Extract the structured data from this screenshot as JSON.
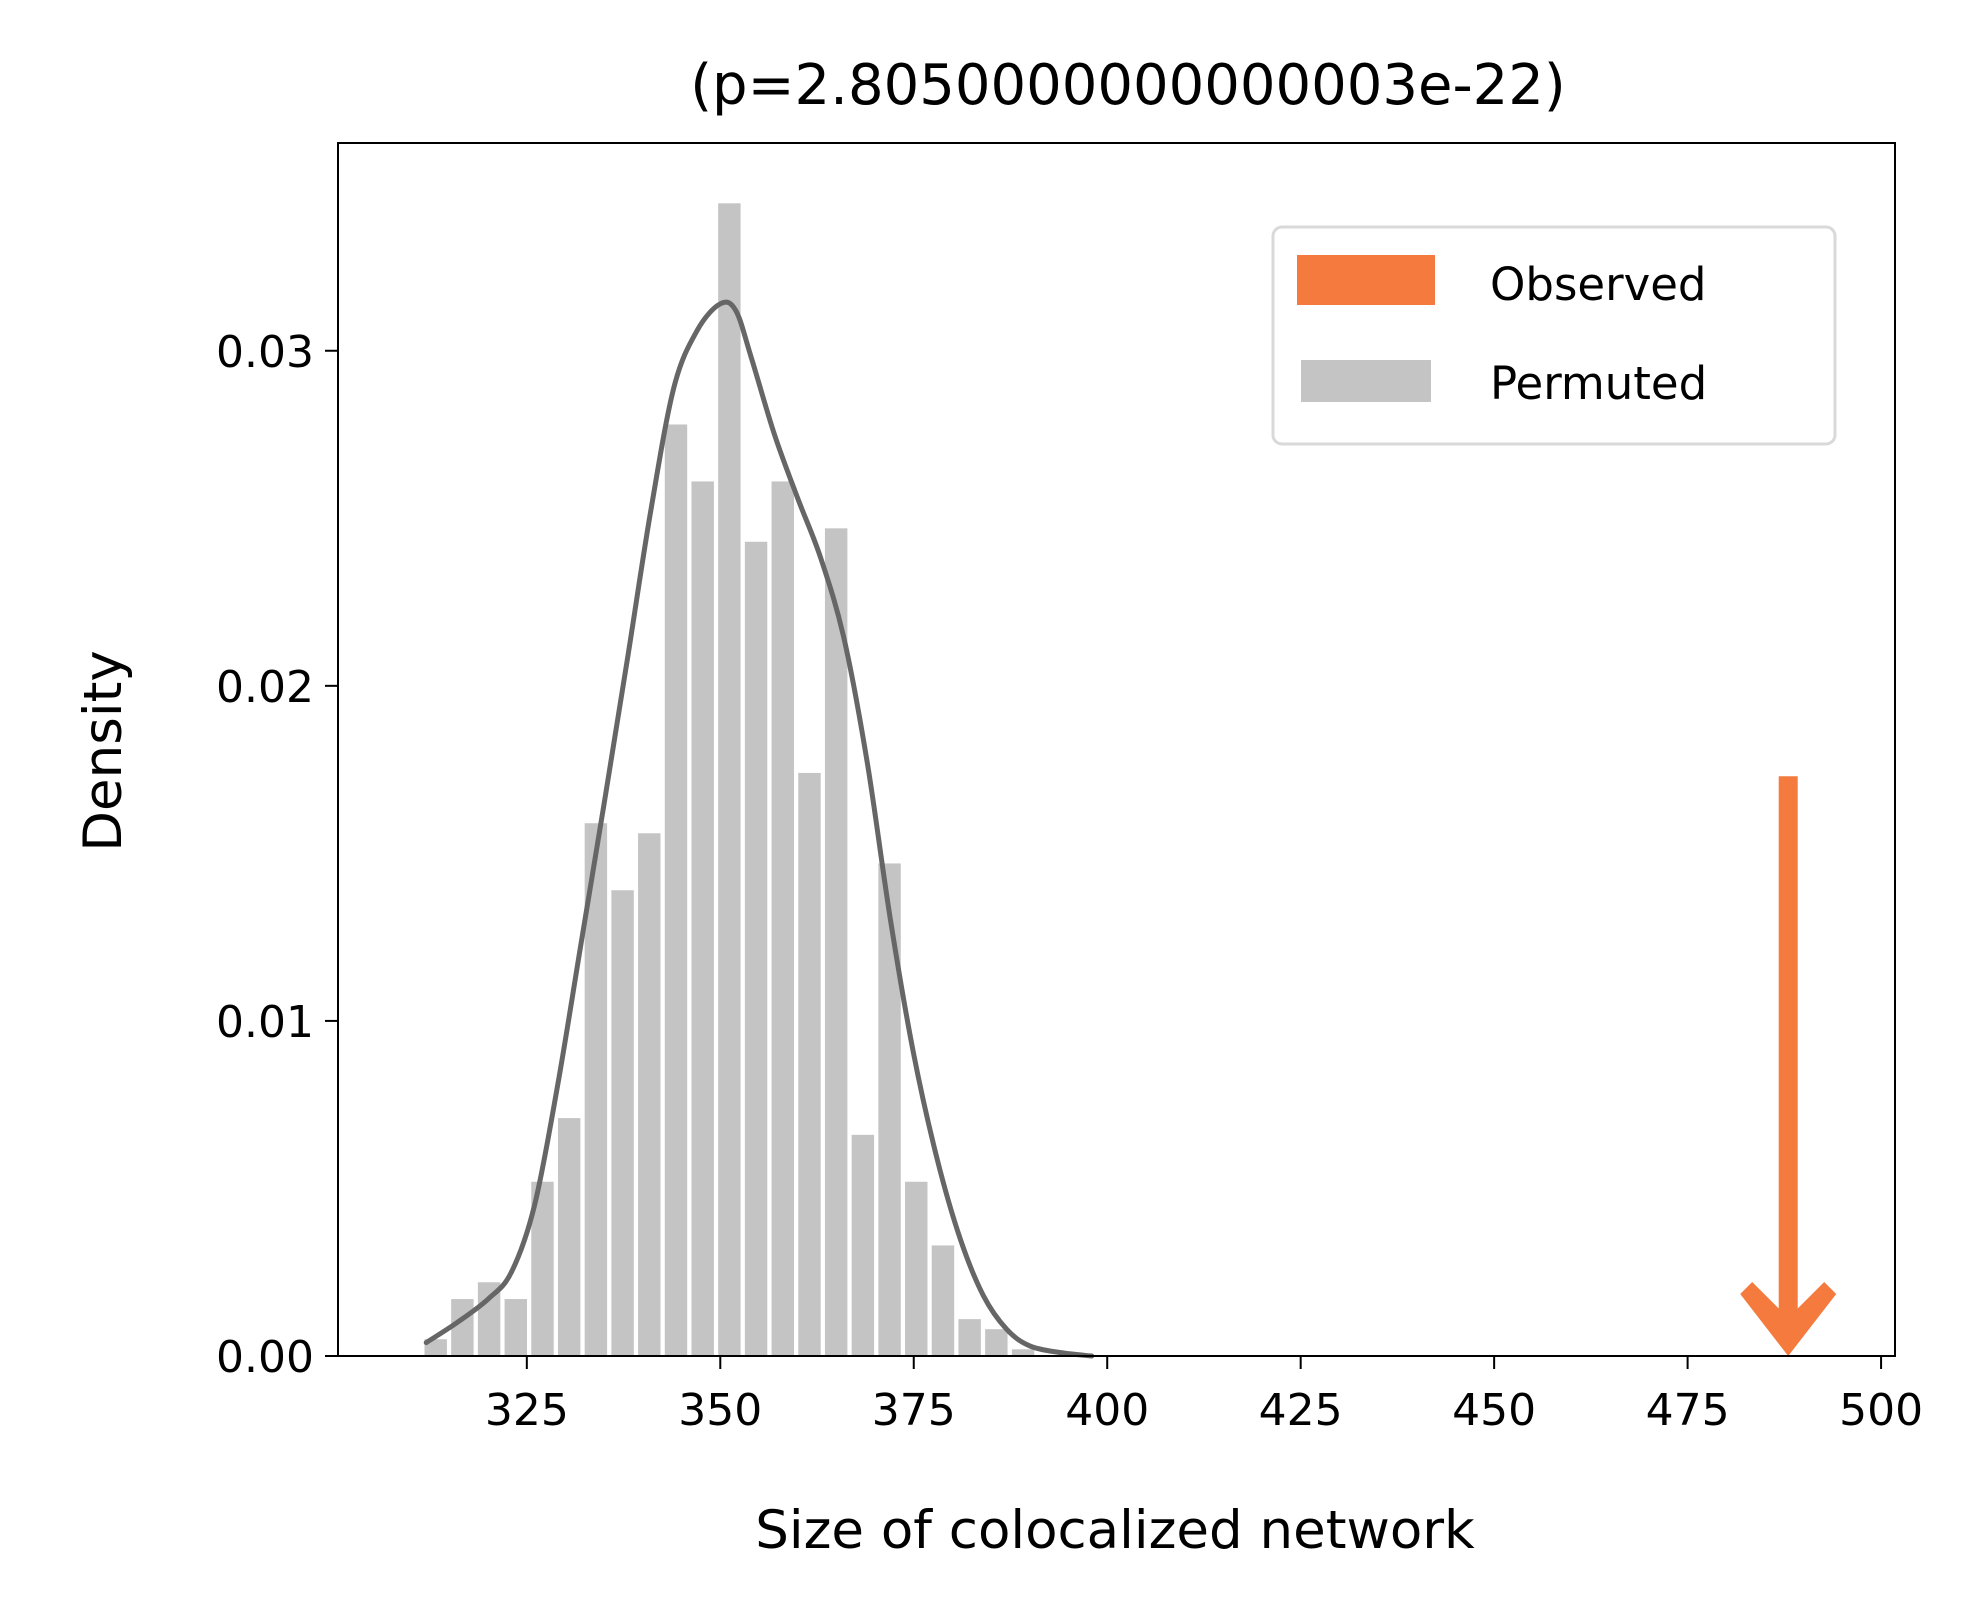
{
  "chart_data": {
    "type": "bar",
    "title": "(p=2.8050000000000003e-22)",
    "xlabel": "Size of colocalized network",
    "ylabel": "Density",
    "xlim": [
      300.6,
      501.8
    ],
    "ylim": [
      0,
      0.0362
    ],
    "xticks": [
      325,
      350,
      375,
      400,
      425,
      450,
      475,
      500
    ],
    "yticks": [
      0.0,
      0.01,
      0.02,
      0.03
    ],
    "ytick_labels": [
      "0.00",
      "0.01",
      "0.02",
      "0.03"
    ],
    "grid": false,
    "legend": {
      "placement": "top-right",
      "entries": [
        {
          "name": "Observed",
          "color": "#f47a3d"
        },
        {
          "name": "Permuted",
          "color": "#c4c4c4"
        }
      ]
    },
    "histogram": {
      "name": "Permuted",
      "color": "#c4c4c4",
      "bin_width": 3.45,
      "bins": [
        {
          "x0": 311.5,
          "y": 0.0005
        },
        {
          "x0": 314.95,
          "y": 0.0017
        },
        {
          "x0": 318.4,
          "y": 0.0022
        },
        {
          "x0": 321.85,
          "y": 0.0017
        },
        {
          "x0": 325.3,
          "y": 0.0052
        },
        {
          "x0": 328.75,
          "y": 0.0071
        },
        {
          "x0": 332.2,
          "y": 0.0159
        },
        {
          "x0": 335.65,
          "y": 0.0139
        },
        {
          "x0": 339.1,
          "y": 0.0156
        },
        {
          "x0": 342.55,
          "y": 0.0278
        },
        {
          "x0": 346.0,
          "y": 0.0261
        },
        {
          "x0": 349.45,
          "y": 0.0344
        },
        {
          "x0": 352.9,
          "y": 0.0243
        },
        {
          "x0": 356.35,
          "y": 0.0261
        },
        {
          "x0": 359.8,
          "y": 0.0174
        },
        {
          "x0": 363.25,
          "y": 0.0247
        },
        {
          "x0": 366.7,
          "y": 0.0066
        },
        {
          "x0": 370.15,
          "y": 0.0147
        },
        {
          "x0": 373.6,
          "y": 0.0052
        },
        {
          "x0": 377.05,
          "y": 0.0033
        },
        {
          "x0": 380.5,
          "y": 0.0011
        },
        {
          "x0": 383.95,
          "y": 0.0008
        },
        {
          "x0": 387.4,
          "y": 0.0002
        }
      ]
    },
    "kde": {
      "color": "#666666",
      "points": [
        [
          312,
          0.0004
        ],
        [
          316,
          0.001
        ],
        [
          320,
          0.0017
        ],
        [
          323,
          0.0025
        ],
        [
          326,
          0.0045
        ],
        [
          329,
          0.0081
        ],
        [
          332,
          0.0123
        ],
        [
          335,
          0.0165
        ],
        [
          338,
          0.0208
        ],
        [
          341,
          0.0252
        ],
        [
          344,
          0.0289
        ],
        [
          347,
          0.0306
        ],
        [
          350,
          0.0314
        ],
        [
          352,
          0.0312
        ],
        [
          354,
          0.0298
        ],
        [
          357,
          0.0275
        ],
        [
          360,
          0.0256
        ],
        [
          363,
          0.0238
        ],
        [
          366,
          0.0214
        ],
        [
          369,
          0.0177
        ],
        [
          372,
          0.013
        ],
        [
          375,
          0.009
        ],
        [
          378,
          0.0059
        ],
        [
          381,
          0.0035
        ],
        [
          384,
          0.0018
        ],
        [
          387,
          0.0008
        ],
        [
          390,
          0.0003
        ],
        [
          394,
          0.0001
        ],
        [
          398,
          0.0
        ]
      ]
    },
    "observed": {
      "name": "Observed",
      "x": 488,
      "arrow_top": 0.0173,
      "color": "#f47a3d"
    }
  }
}
